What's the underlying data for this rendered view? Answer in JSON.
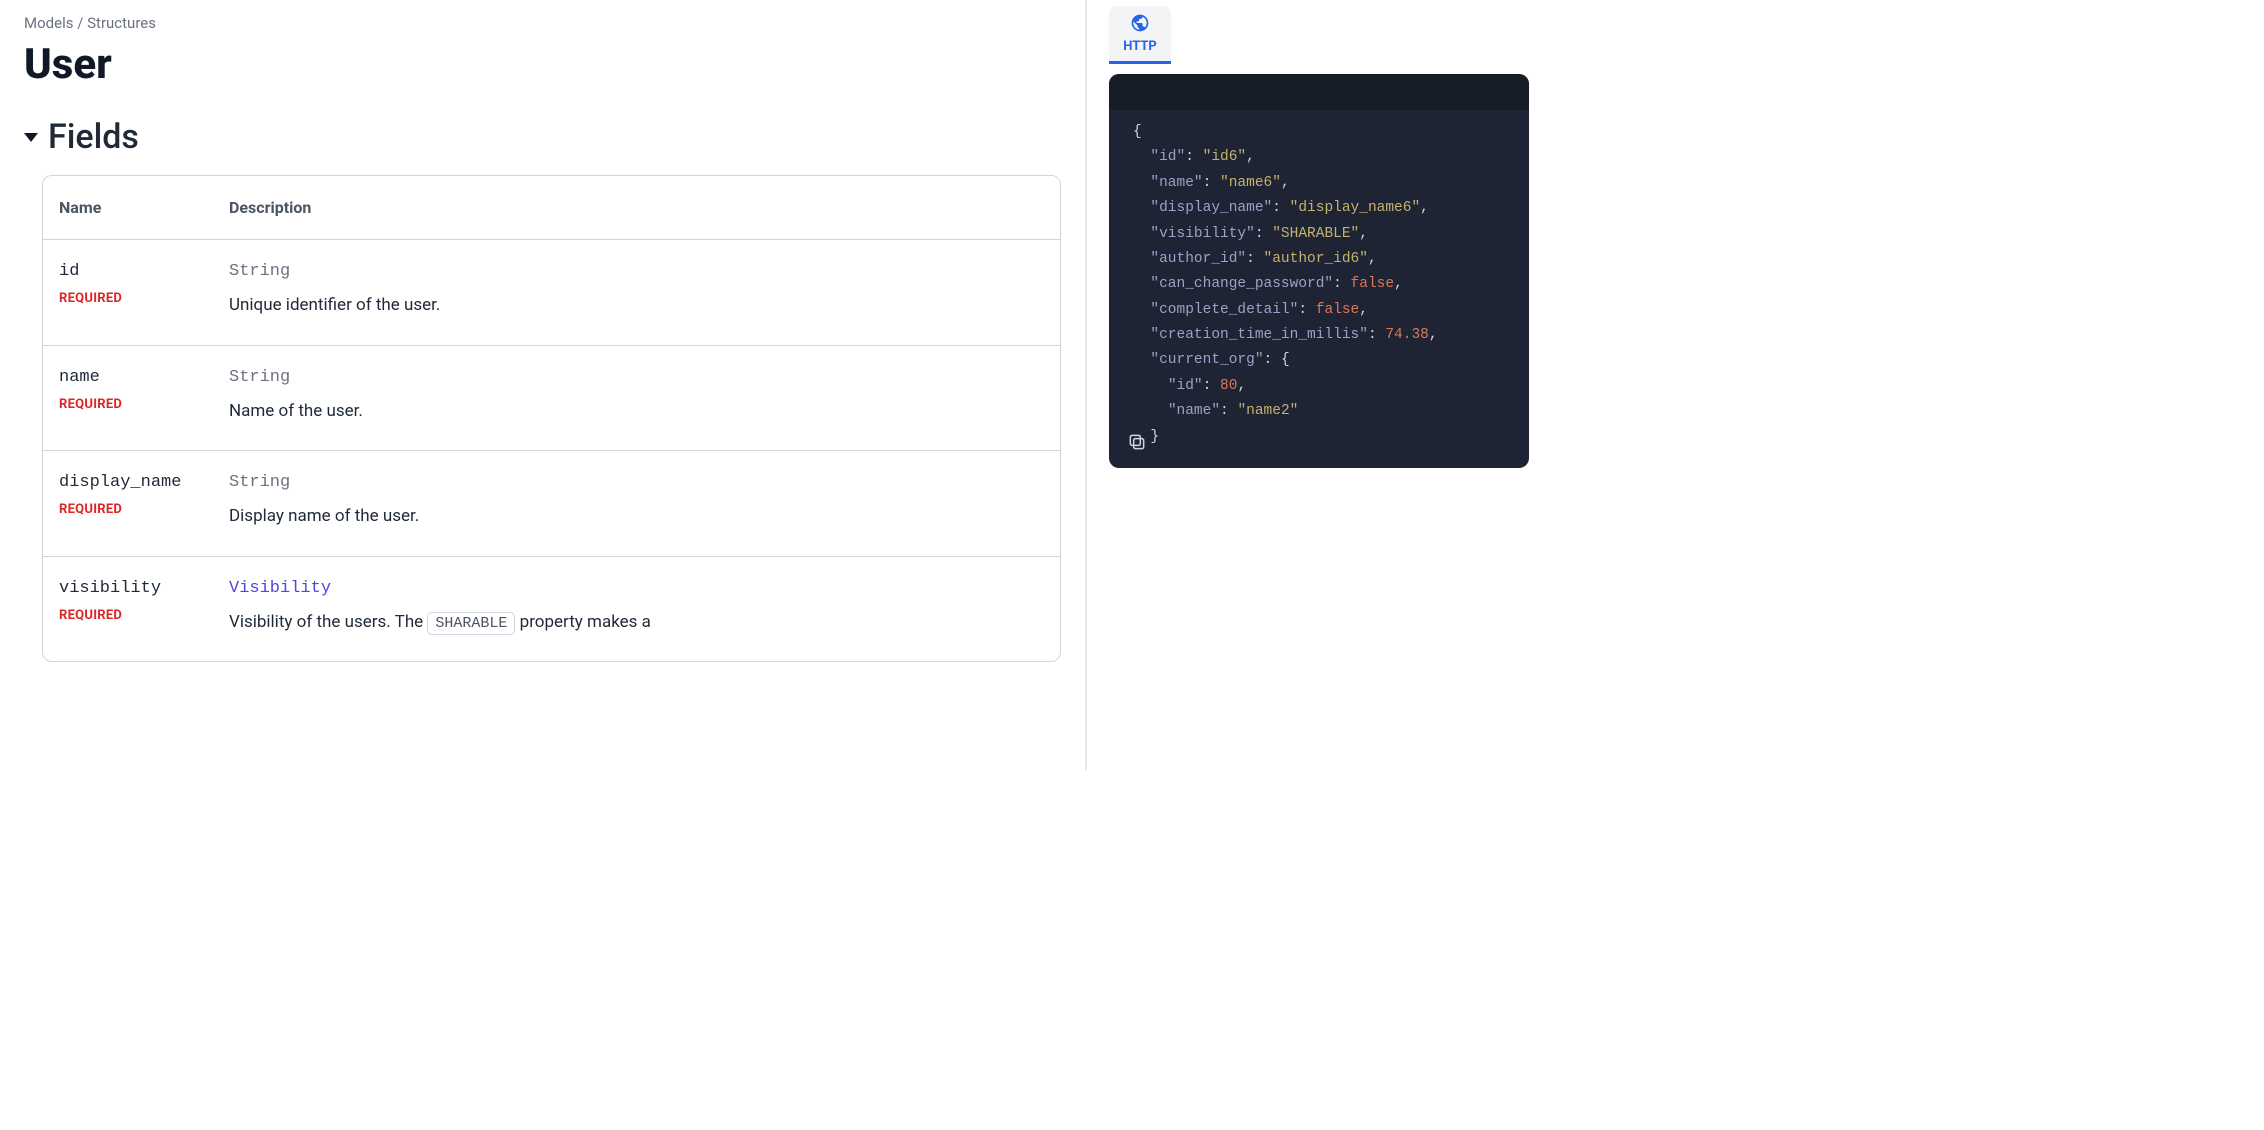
{
  "breadcrumb": {
    "parent": "Models",
    "separator": "/",
    "current": "Structures"
  },
  "page_title": "User",
  "section": {
    "title": "Fields",
    "columns": {
      "name": "Name",
      "desc": "Description"
    },
    "required_label": "REQUIRED",
    "rows": [
      {
        "name": "id",
        "type": "String",
        "type_link": false,
        "required": true,
        "desc_pre": "Unique identifier of the user.",
        "inline": "",
        "desc_post": ""
      },
      {
        "name": "name",
        "type": "String",
        "type_link": false,
        "required": true,
        "desc_pre": "Name of the user.",
        "inline": "",
        "desc_post": ""
      },
      {
        "name": "display_name",
        "type": "String",
        "type_link": false,
        "required": true,
        "desc_pre": "Display name of the user.",
        "inline": "",
        "desc_post": ""
      },
      {
        "name": "visibility",
        "type": "Visibility",
        "type_link": true,
        "required": true,
        "desc_pre": "Visibility of the users. The ",
        "inline": "SHARABLE",
        "desc_post": " property makes a"
      }
    ]
  },
  "sample_tab": {
    "label": "HTTP"
  },
  "code": {
    "lines": [
      {
        "indent": 0,
        "key": "",
        "val": "{",
        "vtype": "punc",
        "comma": false
      },
      {
        "indent": 1,
        "key": "id",
        "val": "id6",
        "vtype": "str",
        "comma": true
      },
      {
        "indent": 1,
        "key": "name",
        "val": "name6",
        "vtype": "str",
        "comma": true
      },
      {
        "indent": 1,
        "key": "display_name",
        "val": "display_name6",
        "vtype": "str",
        "comma": true
      },
      {
        "indent": 1,
        "key": "visibility",
        "val": "SHARABLE",
        "vtype": "str",
        "comma": true
      },
      {
        "indent": 1,
        "key": "author_id",
        "val": "author_id6",
        "vtype": "str",
        "comma": true
      },
      {
        "indent": 1,
        "key": "can_change_password",
        "val": "false",
        "vtype": "bool",
        "comma": true
      },
      {
        "indent": 1,
        "key": "complete_detail",
        "val": "false",
        "vtype": "bool",
        "comma": true
      },
      {
        "indent": 1,
        "key": "creation_time_in_millis",
        "val": "74.38",
        "vtype": "num",
        "comma": true
      },
      {
        "indent": 1,
        "key": "current_org",
        "val": "{",
        "vtype": "punc",
        "comma": false
      },
      {
        "indent": 2,
        "key": "id",
        "val": "80",
        "vtype": "num",
        "comma": true
      },
      {
        "indent": 2,
        "key": "name",
        "val": "name2",
        "vtype": "str",
        "comma": false
      },
      {
        "indent": 1,
        "key": "",
        "val": "}",
        "vtype": "punc",
        "comma": false
      }
    ]
  },
  "colors": {
    "code_bg": "#1e2433",
    "code_top": "#171c29",
    "key": "#9aa2c9",
    "str": "#c4b26d",
    "boolnum": "#d97757",
    "accent": "#2563eb",
    "required": "#dc2626",
    "border": "#d1d5db"
  }
}
